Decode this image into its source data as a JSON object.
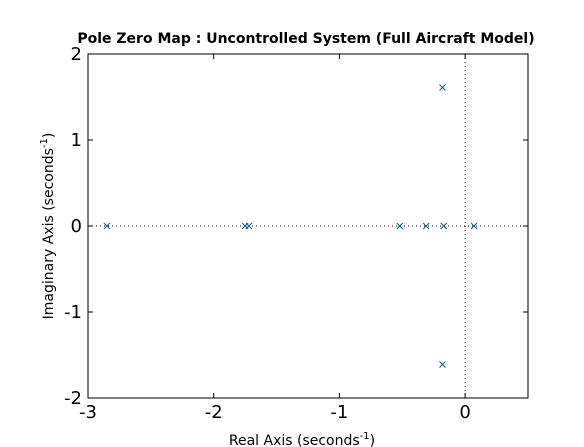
{
  "chart_data": {
    "type": "scatter",
    "title": "Pole Zero Map : Uncontrolled System (Full Aircraft Model)",
    "xlabel": {
      "text": "Real Axis (seconds",
      "sup": "-1",
      "tail": ")"
    },
    "ylabel": {
      "text": "Imaginary Axis (seconds",
      "sup": "-1",
      "tail": ")"
    },
    "xlim": [
      -3,
      0.5
    ],
    "ylim": [
      -2,
      2
    ],
    "xticks": [
      -3,
      -2,
      -1,
      0
    ],
    "xtick_labels": [
      "-3",
      "-2",
      "-1",
      "0"
    ],
    "yticks": [
      -2,
      -1,
      0,
      1,
      2
    ],
    "ytick_labels": [
      "-2",
      "-1",
      "0",
      "1",
      "2"
    ],
    "grid": false,
    "reference_lines": {
      "x": 0,
      "y": 0,
      "style": "dotted"
    },
    "marker": "x",
    "marker_color": "#1f5f8b",
    "series": [
      {
        "x": [
          -2.85,
          -1.75,
          -1.72,
          -0.52,
          -0.31,
          -0.17,
          0.07,
          -0.18,
          -0.18
        ],
        "y": [
          0,
          0,
          0,
          0,
          0,
          0,
          0,
          1.61,
          -1.61
        ]
      }
    ]
  }
}
